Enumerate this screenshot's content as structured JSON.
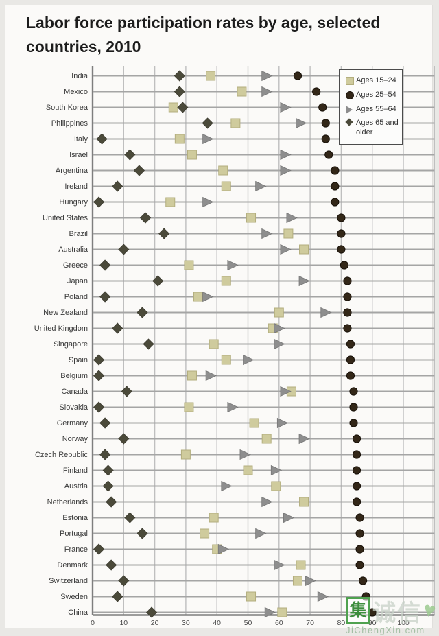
{
  "title": "Labor force participation rates by age, selected countries, 2010",
  "legend": {
    "items": [
      {
        "label": "Ages 15–24",
        "marker": "square"
      },
      {
        "label": "Ages 25–54",
        "marker": "circle"
      },
      {
        "label": "Ages 55–64",
        "marker": "triangle"
      },
      {
        "label": "Ages 65 and older",
        "marker": "diamond"
      }
    ]
  },
  "watermark": {
    "boxed_char": "集",
    "faint_chars": "诚信",
    "heart": "♥",
    "site": "JiChengXin.com"
  },
  "chart_data": {
    "type": "scatter",
    "subtype": "horizontal-dot-plot",
    "title": "Labor force participation rates by age, selected countries, 2010",
    "xlabel": "",
    "ylabel": "",
    "xlim": [
      0,
      110
    ],
    "x_ticks": [
      0,
      10,
      20,
      30,
      40,
      50,
      60,
      70,
      80,
      90,
      100
    ],
    "grid": true,
    "legend_position": "top-right",
    "categories": [
      "India",
      "Mexico",
      "South Korea",
      "Philippines",
      "Italy",
      "Israel",
      "Argentina",
      "Ireland",
      "Hungary",
      "United States",
      "Brazil",
      "Australia",
      "Greece",
      "Japan",
      "Poland",
      "New Zealand",
      "United Kingdom",
      "Singapore",
      "Spain",
      "Belgium",
      "Canada",
      "Slovakia",
      "Germany",
      "Norway",
      "Czech Republic",
      "Finland",
      "Austria",
      "Netherlands",
      "Estonia",
      "Portugal",
      "France",
      "Denmark",
      "Switzerland",
      "Sweden",
      "China"
    ],
    "series": [
      {
        "name": "Ages 15–24",
        "marker": "square",
        "color": "#cfcb9d",
        "values": [
          38,
          48,
          26,
          46,
          28,
          32,
          42,
          43,
          25,
          51,
          63,
          68,
          31,
          43,
          34,
          60,
          58,
          39,
          43,
          32,
          64,
          31,
          52,
          56,
          30,
          50,
          59,
          68,
          39,
          36,
          40,
          67,
          66,
          51,
          61
        ]
      },
      {
        "name": "Ages 25–54",
        "marker": "circle",
        "color": "#332718",
        "values": [
          66,
          72,
          74,
          75,
          75,
          76,
          78,
          78,
          78,
          80,
          80,
          80,
          81,
          82,
          82,
          82,
          82,
          83,
          83,
          83,
          84,
          84,
          84,
          85,
          85,
          85,
          85,
          85,
          86,
          86,
          86,
          86,
          87,
          88,
          90
        ]
      },
      {
        "name": "Ages 55–64",
        "marker": "triangle",
        "color": "#8e8e8e",
        "values": [
          56,
          56,
          62,
          67,
          37,
          62,
          62,
          54,
          37,
          64,
          56,
          62,
          45,
          68,
          37,
          75,
          60,
          60,
          50,
          38,
          62,
          45,
          61,
          68,
          49,
          59,
          43,
          56,
          63,
          54,
          42,
          60,
          70,
          74,
          57
        ]
      },
      {
        "name": "Ages 65 and older",
        "marker": "diamond",
        "color": "#4b4a3a",
        "values": [
          28,
          28,
          29,
          37,
          3,
          12,
          15,
          8,
          2,
          17,
          23,
          10,
          4,
          21,
          4,
          16,
          8,
          18,
          2,
          2,
          11,
          2,
          4,
          10,
          4,
          5,
          5,
          6,
          12,
          16,
          2,
          6,
          10,
          8,
          19
        ]
      }
    ]
  }
}
